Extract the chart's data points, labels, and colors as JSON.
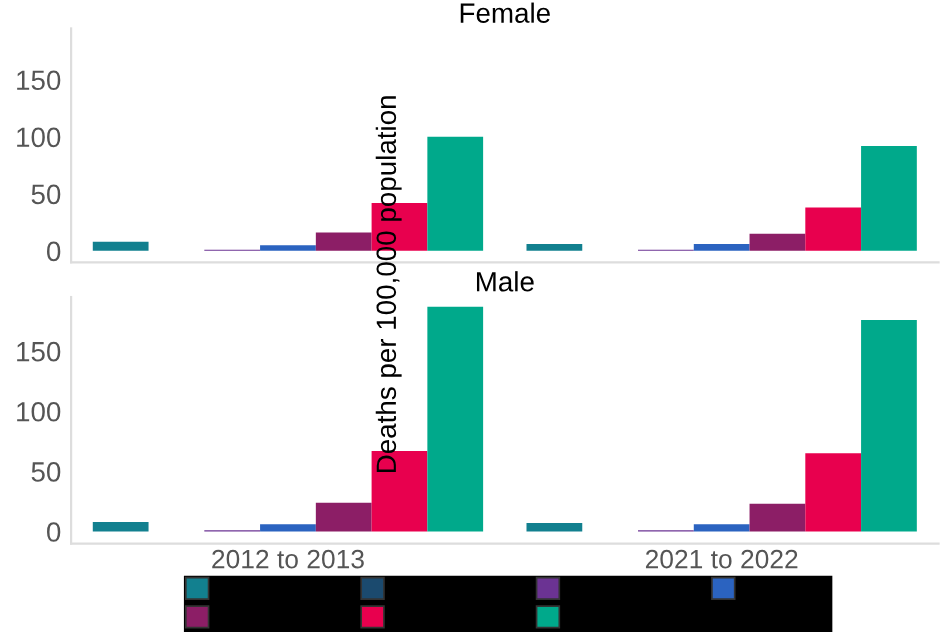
{
  "chart_data": [
    {
      "type": "bar",
      "title": "Female",
      "ylabel": "Deaths per 100,000 population",
      "categories": [
        null,
        null
      ],
      "ylim": [
        -10,
        195
      ],
      "yticks": [
        0,
        50,
        100,
        150
      ],
      "tick_labels": "y",
      "grid": false,
      "legend": false,
      "series": [
        {
          "color": "#12808f",
          "values": [
            8,
            6
          ]
        },
        {
          "color": "#1b4a6e",
          "values": [
            0,
            0
          ]
        },
        {
          "color": "#6b3393",
          "values": [
            1,
            1
          ]
        },
        {
          "color": "#2b63c0",
          "values": [
            5,
            6
          ]
        },
        {
          "color": "#8c1e66",
          "values": [
            16,
            15
          ]
        },
        {
          "color": "#e8004e",
          "values": [
            42,
            38
          ]
        },
        {
          "color": "#00a98b",
          "values": [
            100,
            92
          ]
        }
      ]
    },
    {
      "type": "bar",
      "title": "Male",
      "categories": [
        "2012 to 2013",
        "2021 to 2022"
      ],
      "ylim": [
        -10,
        195
      ],
      "yticks": [
        0,
        50,
        100,
        150
      ],
      "grid": false,
      "series": [
        {
          "color": "#12808f",
          "values": [
            8,
            7
          ]
        },
        {
          "color": "#1b4a6e",
          "values": [
            0,
            0
          ]
        },
        {
          "color": "#6b3393",
          "values": [
            1,
            1
          ]
        },
        {
          "color": "#2b63c0",
          "values": [
            6,
            6
          ]
        },
        {
          "color": "#8c1e66",
          "values": [
            24,
            23
          ]
        },
        {
          "color": "#e8004e",
          "values": [
            67,
            65
          ]
        },
        {
          "color": "#00a98b",
          "values": [
            187,
            176
          ]
        }
      ]
    }
  ]
}
